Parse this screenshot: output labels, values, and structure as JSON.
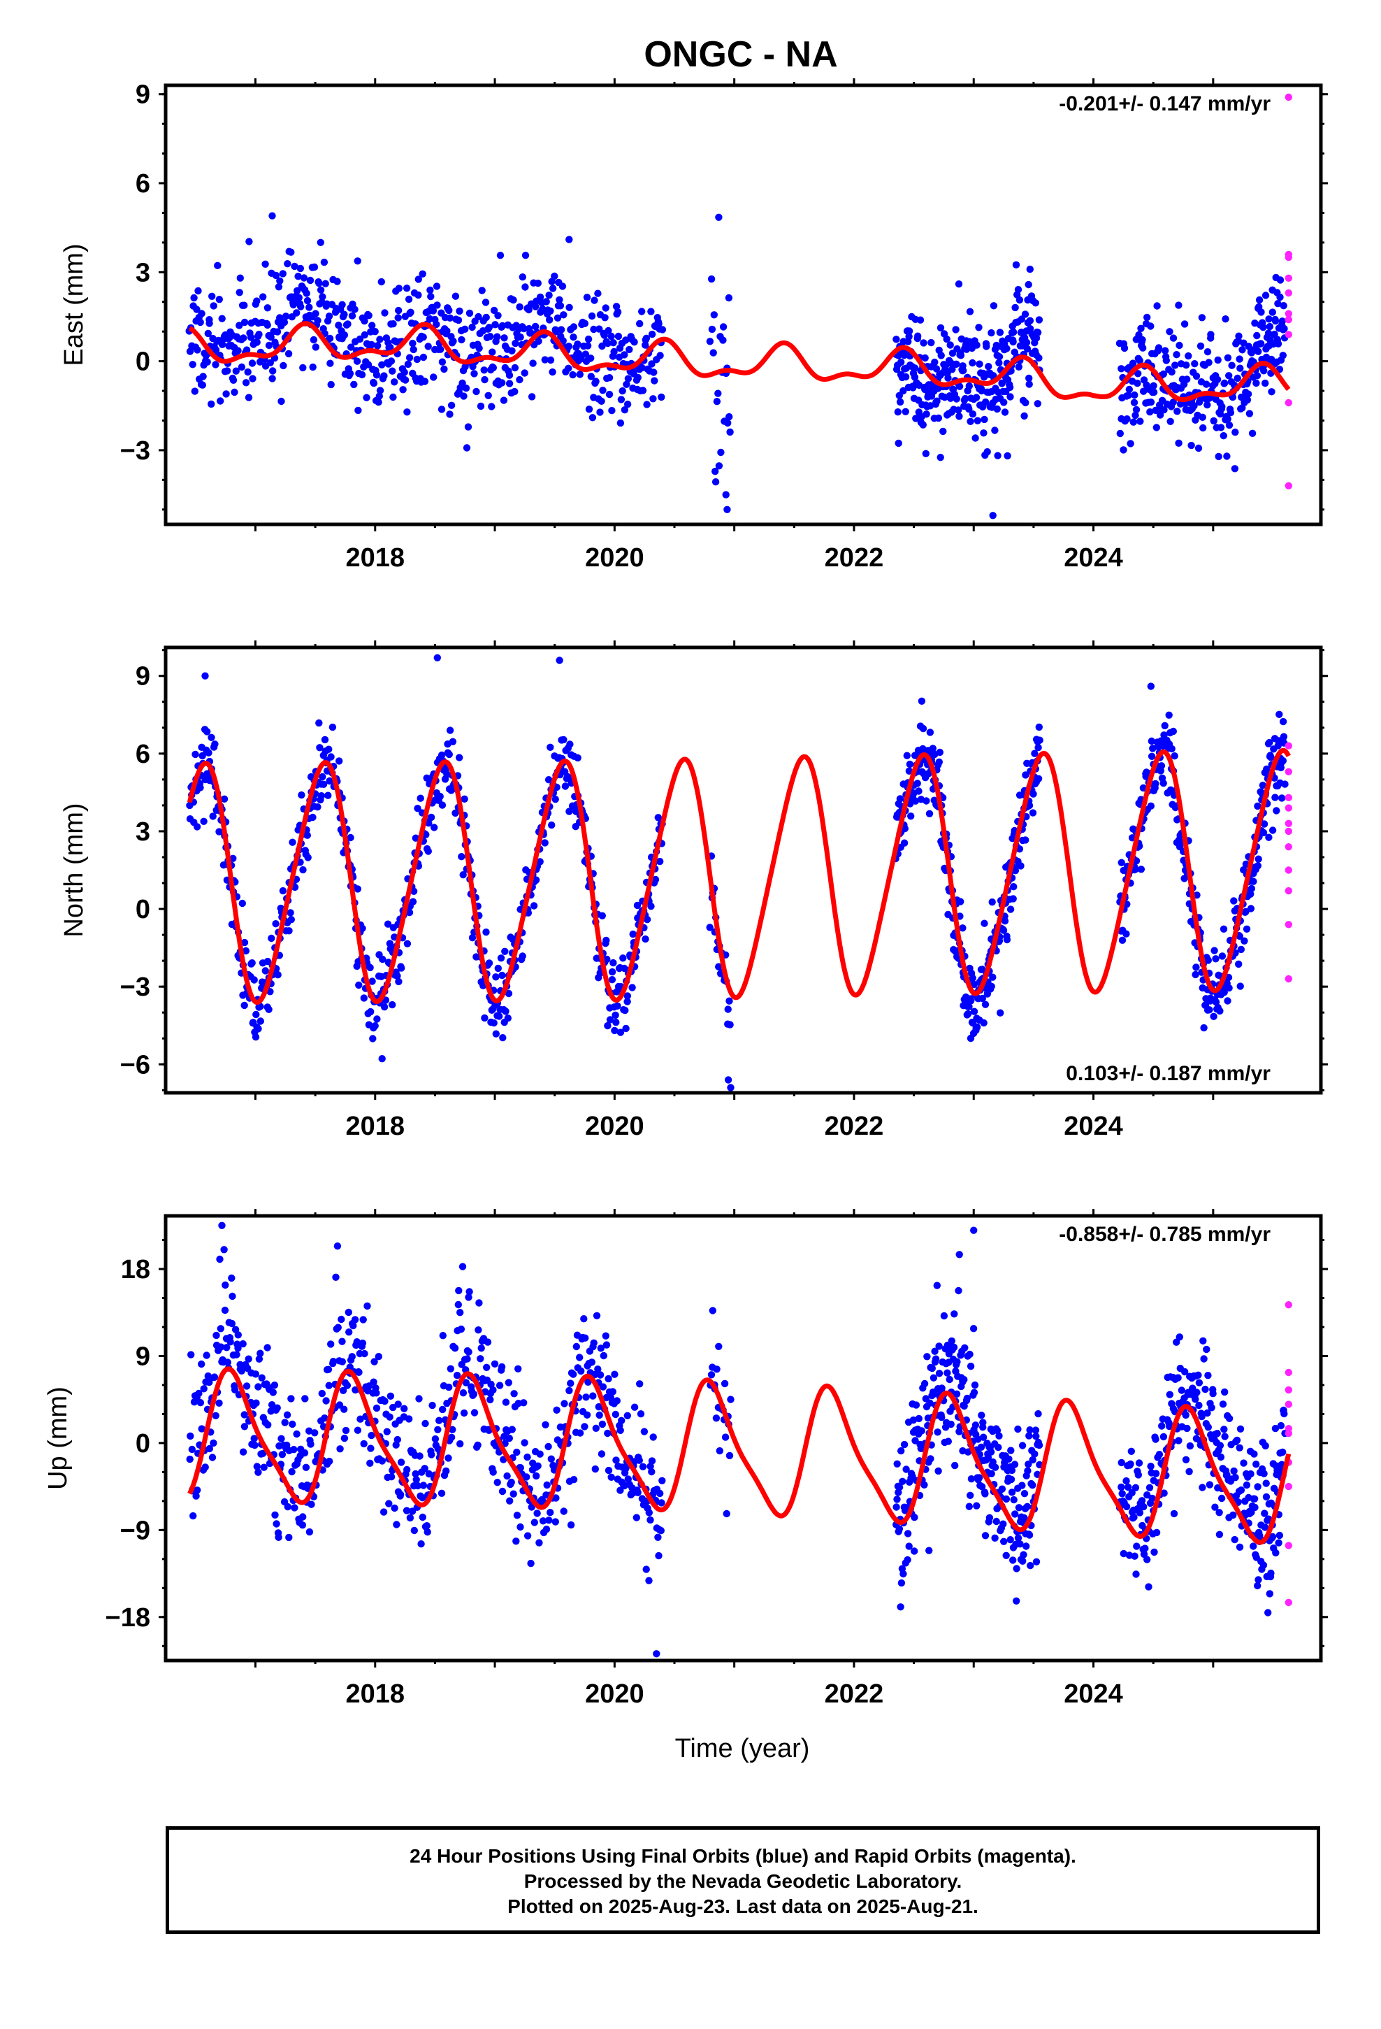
{
  "title": "ONGC - NA",
  "xlabel": "Time (year)",
  "colors": {
    "final_orbit_points": "#0000ff",
    "rapid_orbit_points": "#ff22ff",
    "model_fit": "#ff0000"
  },
  "footer": {
    "line1": "24 Hour Positions Using Final Orbits (blue) and Rapid Orbits (magenta).",
    "line2": "Processed by the Nevada Geodetic Laboratory.",
    "line3": "Plotted on 2025-Aug-23. Last data on 2025-Aug-21."
  },
  "chart_data": [
    {
      "type": "scatter",
      "panel": "east",
      "ylabel": "East (mm)",
      "rate_text": "-0.201+/- 0.147 mm/yr",
      "rate_position": "top-right",
      "xlim": [
        2016.25,
        2025.9
      ],
      "ylim": [
        -5.5,
        9.3
      ],
      "xticks": [
        2018,
        2020,
        2022,
        2024
      ],
      "yticks": [
        -3,
        0,
        3,
        6,
        9
      ],
      "grid": false,
      "series": [
        {
          "name": "Final orbits (blue)",
          "kind": "points",
          "segments": [
            {
              "start": 2016.45,
              "end": 2020.4,
              "trend": [
                [
                  2016.45,
                  0.4
                ],
                [
                  2017.6,
                  1.7
                ],
                [
                  2018.1,
                  0.4
                ],
                [
                  2019.0,
                  0.7
                ],
                [
                  2019.8,
                  0.8
                ],
                [
                  2020.4,
                  -0.6
                ]
              ],
              "spread": 1.0,
              "step": 0.006
            },
            {
              "start": 2020.8,
              "end": 2020.97,
              "trend": [
                [
                  2020.8,
                  -0.2
                ],
                [
                  2020.97,
                  -0.6
                ]
              ],
              "spread": 1.4,
              "step": 0.008
            },
            {
              "start": 2022.35,
              "end": 2023.55,
              "trend": [
                [
                  2022.35,
                  -1.1
                ],
                [
                  2022.8,
                  -0.3
                ],
                [
                  2023.2,
                  -0.6
                ],
                [
                  2023.55,
                  0.1
                ]
              ],
              "spread": 1.0,
              "step": 0.004
            },
            {
              "start": 2024.22,
              "end": 2025.27,
              "trend": [
                [
                  2024.22,
                  -1.3
                ],
                [
                  2024.6,
                  -0.9
                ],
                [
                  2024.9,
                  -0.6
                ],
                [
                  2025.27,
                  -1.1
                ]
              ],
              "spread": 0.9,
              "step": 0.005
            },
            {
              "start": 2025.27,
              "end": 2025.6,
              "trend": [
                [
                  2025.27,
                  -1.2
                ],
                [
                  2025.6,
                  1.0
                ]
              ],
              "spread": 1.0,
              "step": 0.004
            }
          ],
          "outliers": [
            [
              2017.14,
              4.9
            ],
            [
              2019.62,
              4.1
            ],
            [
              2020.87,
              4.85
            ],
            [
              2020.93,
              -4.5
            ],
            [
              2020.94,
              -5.0
            ],
            [
              2023.16,
              -5.2
            ],
            [
              2023.47,
              3.1
            ],
            [
              2024.98,
              0.9
            ]
          ]
        },
        {
          "name": "Rapid orbits (magenta)",
          "kind": "points",
          "x": [
            2025.63,
            2025.63,
            2025.63,
            2025.63,
            2025.63,
            2025.63,
            2025.63,
            2025.63,
            2025.63,
            2025.63
          ],
          "y": [
            8.9,
            3.6,
            3.5,
            2.8,
            2.3,
            1.6,
            1.4,
            0.9,
            -1.4,
            -4.2
          ]
        },
        {
          "name": "Model fit (red)",
          "kind": "line",
          "trend": [
            [
              2016.45,
              0.4
            ],
            [
              2018.0,
              0.6
            ],
            [
              2020.4,
              0.0
            ],
            [
              2022.0,
              -0.2
            ],
            [
              2023.0,
              -0.4
            ],
            [
              2024.0,
              -0.9
            ],
            [
              2025.63,
              -0.8
            ]
          ],
          "amp1": 0.5,
          "ph1": 0.15,
          "amp2": 0.25,
          "ph2": 0.3
        }
      ]
    },
    {
      "type": "scatter",
      "panel": "north",
      "ylabel": "North (mm)",
      "rate_text": "0.103+/- 0.187 mm/yr",
      "rate_position": "bottom-right",
      "xlim": [
        2016.25,
        2025.9
      ],
      "ylim": [
        -7.1,
        10.1
      ],
      "xticks": [
        2018,
        2020,
        2022,
        2024
      ],
      "yticks": [
        -6,
        -3,
        0,
        3,
        6,
        9
      ],
      "grid": false,
      "series": [
        {
          "name": "Final orbits (blue)",
          "kind": "points",
          "segments": [
            {
              "start": 2016.45,
              "end": 2020.4,
              "trend": [
                [
                  2016.45,
                  1.0
                ],
                [
                  2020.4,
                  1.0
                ]
              ],
              "spread": 0.8,
              "step": 0.006
            },
            {
              "start": 2020.8,
              "end": 2020.97,
              "trend": [
                [
                  2020.8,
                  1.0
                ],
                [
                  2020.97,
                  1.0
                ]
              ],
              "spread": 1.0,
              "step": 0.008
            },
            {
              "start": 2022.35,
              "end": 2023.55,
              "trend": [
                [
                  2022.35,
                  1.2
                ],
                [
                  2023.55,
                  1.2
                ]
              ],
              "spread": 0.8,
              "step": 0.004
            },
            {
              "start": 2024.22,
              "end": 2025.27,
              "trend": [
                [
                  2024.22,
                  1.3
                ],
                [
                  2025.27,
                  1.3
                ]
              ],
              "spread": 0.8,
              "step": 0.005
            },
            {
              "start": 2025.27,
              "end": 2025.6,
              "trend": [
                [
                  2025.27,
                  1.3
                ],
                [
                  2025.6,
                  1.3
                ]
              ],
              "spread": 0.9,
              "step": 0.004
            }
          ],
          "outliers": [
            [
              2016.58,
              9.0
            ],
            [
              2018.52,
              9.7
            ],
            [
              2019.54,
              9.6
            ],
            [
              2020.95,
              -6.6
            ],
            [
              2020.97,
              -6.9
            ],
            [
              2024.48,
              8.6
            ]
          ]
        },
        {
          "name": "Rapid orbits (magenta)",
          "kind": "points",
          "x": [
            2025.63,
            2025.63,
            2025.63,
            2025.63,
            2025.63,
            2025.63,
            2025.63,
            2025.63,
            2025.63,
            2025.63,
            2025.63
          ],
          "y": [
            6.3,
            5.3,
            4.3,
            3.9,
            3.3,
            3.0,
            2.4,
            1.5,
            0.7,
            -0.6,
            -2.7
          ]
        },
        {
          "name": "Model fit (red)",
          "kind": "line",
          "trend": [
            [
              2016.45,
              1.0
            ],
            [
              2020.0,
              1.1
            ],
            [
              2022.0,
              1.3
            ],
            [
              2025.63,
              1.5
            ]
          ],
          "amp1": 4.5,
          "ph1": 0.3,
          "amp2": 0.55,
          "ph2": 0.05
        }
      ]
    },
    {
      "type": "scatter",
      "panel": "up",
      "ylabel": "Up (mm)",
      "rate_text": "-0.858+/- 0.785 mm/yr",
      "rate_position": "top-right",
      "xlim": [
        2016.25,
        2025.9
      ],
      "ylim": [
        -22.5,
        23.5
      ],
      "xticks": [
        2018,
        2020,
        2022,
        2024
      ],
      "yticks": [
        -18,
        -9,
        0,
        9,
        18
      ],
      "grid": false,
      "series": [
        {
          "name": "Final orbits (blue)",
          "kind": "points",
          "segments": [
            {
              "start": 2016.45,
              "end": 2020.4,
              "trend": [
                [
                  2016.45,
                  2.5
                ],
                [
                  2020.4,
                  -0.5
                ]
              ],
              "spread": 4.0,
              "step": 0.006
            },
            {
              "start": 2020.8,
              "end": 2020.97,
              "trend": [
                [
                  2020.8,
                  0.0
                ],
                [
                  2020.97,
                  0.0
                ]
              ],
              "spread": 4.0,
              "step": 0.008
            },
            {
              "start": 2022.35,
              "end": 2023.55,
              "trend": [
                [
                  2022.35,
                  0.0
                ],
                [
                  2023.55,
                  -0.5
                ]
              ],
              "spread": 4.0,
              "step": 0.004
            },
            {
              "start": 2024.22,
              "end": 2025.27,
              "trend": [
                [
                  2024.22,
                  -1.5
                ],
                [
                  2025.27,
                  -2.0
                ]
              ],
              "spread": 3.5,
              "step": 0.005
            },
            {
              "start": 2025.27,
              "end": 2025.6,
              "trend": [
                [
                  2025.27,
                  -2.0
                ],
                [
                  2025.6,
                  -2.0
                ]
              ],
              "spread": 3.5,
              "step": 0.004
            }
          ],
          "outliers": [
            [
              2016.72,
              22.5
            ],
            [
              2020.35,
              -21.8
            ],
            [
              2023.0,
              22.0
            ],
            [
              2022.88,
              19.5
            ]
          ]
        },
        {
          "name": "Rapid orbits (magenta)",
          "kind": "points",
          "x": [
            2025.63,
            2025.63,
            2025.63,
            2025.63,
            2025.63,
            2025.63,
            2025.63,
            2025.63,
            2025.63,
            2025.63
          ],
          "y": [
            14.3,
            7.3,
            5.5,
            4.0,
            1.5,
            1.0,
            -2.0,
            -4.5,
            -10.6,
            -16.5
          ]
        },
        {
          "name": "Model fit (red)",
          "kind": "line",
          "trend": [
            [
              2016.45,
              0.5
            ],
            [
              2020.4,
              -0.5
            ],
            [
              2022.0,
              -1.5
            ],
            [
              2024.0,
              -3.0
            ],
            [
              2025.63,
              -4.0
            ]
          ],
          "amp1": 6.3,
          "ph1": 0.57,
          "amp2": 1.5,
          "ph2": 0.1
        }
      ]
    }
  ]
}
